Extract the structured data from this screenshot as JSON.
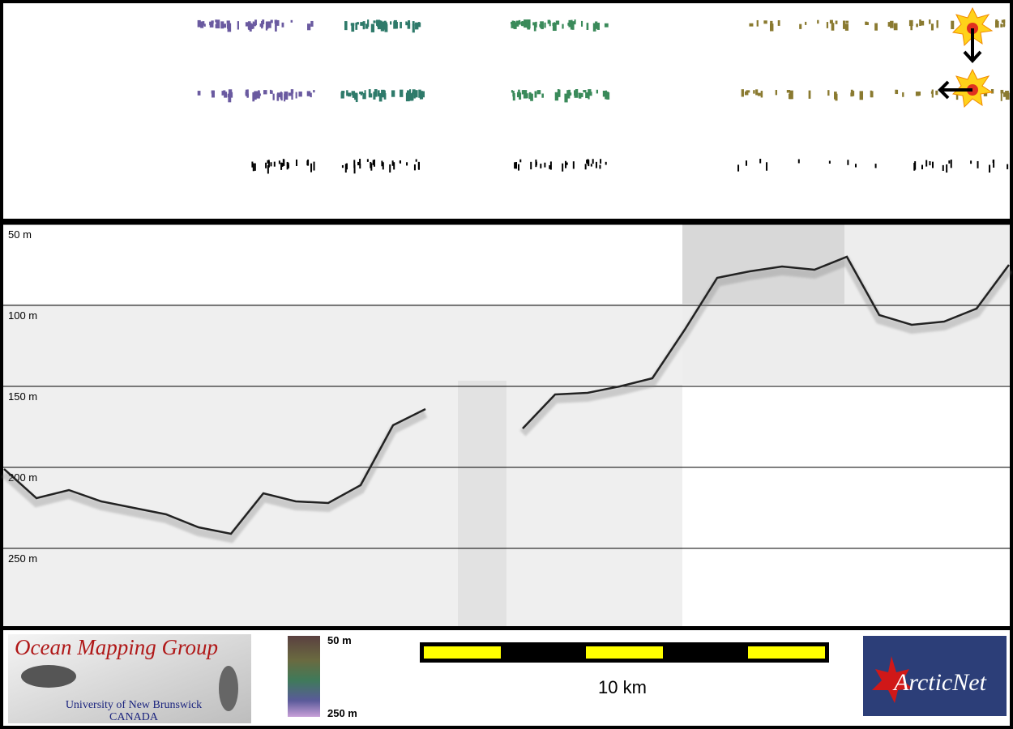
{
  "chart_data": {
    "type": "line",
    "values": [
      201,
      219,
      214,
      221,
      225,
      229,
      237,
      241,
      216,
      221,
      222,
      211,
      174,
      164,
      null,
      null,
      176,
      155,
      154,
      150,
      145,
      115,
      83,
      79,
      76,
      78,
      70,
      106,
      112,
      110,
      102,
      75
    ],
    "color": "#222222",
    "ylim": [
      50,
      298
    ],
    "inverted": true,
    "grid": true,
    "yticks": [
      {
        "value": 50,
        "label": "50 m"
      },
      {
        "value": 100,
        "label": "100 m"
      },
      {
        "value": 150,
        "label": "150 m"
      },
      {
        "value": 200,
        "label": "200 m"
      },
      {
        "value": 250,
        "label": "250 m"
      }
    ]
  },
  "footer": {
    "logo_title": "Ocean Mapping Group",
    "logo_line1": "University of New Brunswick",
    "logo_line2": "CANADA",
    "colorbar_top": "50 m",
    "colorbar_bottom": "250 m",
    "scale_label": "10 km",
    "partner_logo": "ArcticNet"
  }
}
